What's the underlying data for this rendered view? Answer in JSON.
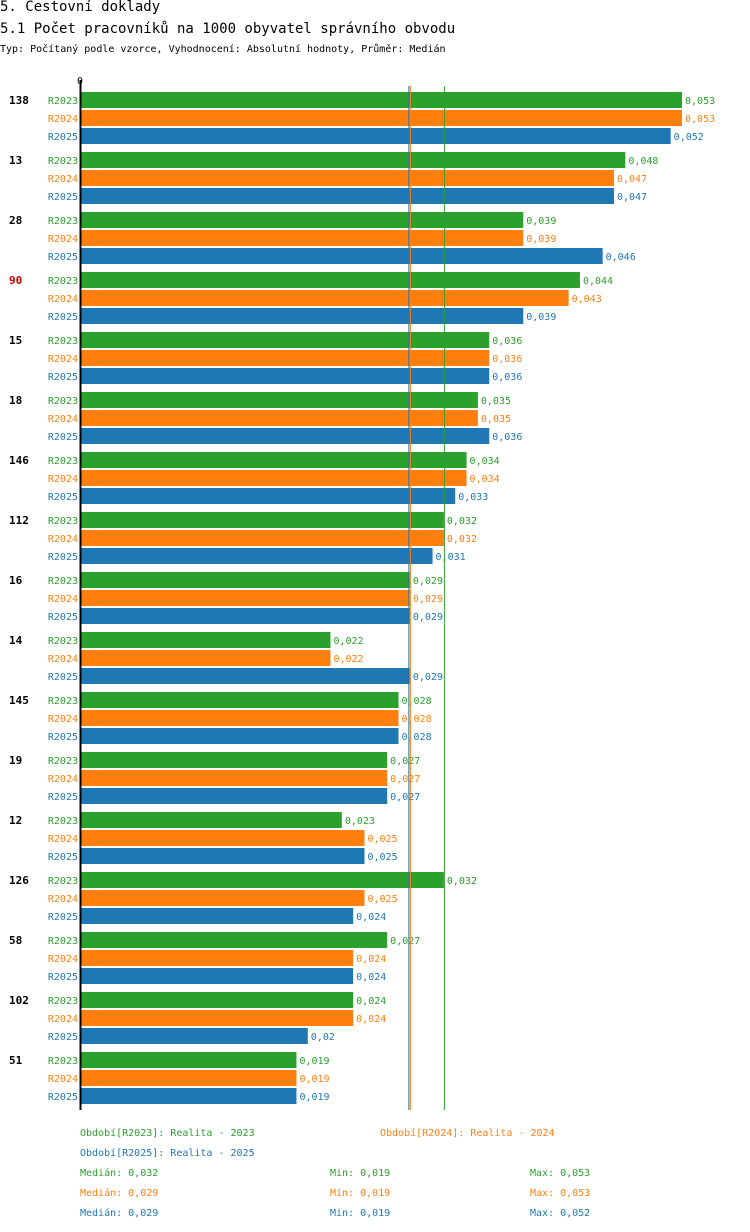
{
  "header": {
    "title": "5. Cestovní doklady",
    "subtitle": "5.1 Počet pracovníků na 1000 obyvatel správního obvodu",
    "description": "Typ: Počítaný podle vzorce, Vyhodnocení: Absolutní hodnoty, Průměr: Medián"
  },
  "colors": {
    "R2023": "#2ca02c",
    "R2024": "#ff7f0e",
    "R2025": "#1f77b4",
    "highlight": "#cc0000"
  },
  "chart_data": {
    "type": "bar",
    "orientation": "horizontal",
    "axis_zero_label": "0",
    "series_names": [
      "R2023",
      "R2024",
      "R2025"
    ],
    "categories": [
      {
        "id": "138",
        "values": [
          "0,053",
          "0,053",
          "0,052"
        ]
      },
      {
        "id": "13",
        "values": [
          "0,048",
          "0,047",
          "0,047"
        ]
      },
      {
        "id": "28",
        "values": [
          "0,039",
          "0,039",
          "0,046"
        ]
      },
      {
        "id": "90",
        "highlight": true,
        "values": [
          "0,044",
          "0,043",
          "0,039"
        ]
      },
      {
        "id": "15",
        "values": [
          "0,036",
          "0,036",
          "0,036"
        ]
      },
      {
        "id": "18",
        "values": [
          "0,035",
          "0,035",
          "0,036"
        ]
      },
      {
        "id": "146",
        "values": [
          "0,034",
          "0,034",
          "0,033"
        ]
      },
      {
        "id": "112",
        "values": [
          "0,032",
          "0,032",
          "0,031"
        ]
      },
      {
        "id": "16",
        "values": [
          "0,029",
          "0,029",
          "0,029"
        ]
      },
      {
        "id": "14",
        "values": [
          "0,022",
          "0,022",
          "0,029"
        ]
      },
      {
        "id": "145",
        "values": [
          "0,028",
          "0,028",
          "0,028"
        ]
      },
      {
        "id": "19",
        "values": [
          "0,027",
          "0,027",
          "0,027"
        ]
      },
      {
        "id": "12",
        "values": [
          "0,023",
          "0,025",
          "0,025"
        ]
      },
      {
        "id": "126",
        "values": [
          "0,032",
          "0,025",
          "0,024"
        ]
      },
      {
        "id": "58",
        "values": [
          "0,027",
          "0,024",
          "0,024"
        ]
      },
      {
        "id": "102",
        "values": [
          "0,024",
          "0,024",
          "0,02"
        ]
      },
      {
        "id": "51",
        "values": [
          "0,019",
          "0,019",
          "0,019"
        ]
      }
    ],
    "medians": {
      "R2023": 0.032,
      "R2024": 0.029,
      "R2025": 0.029
    }
  },
  "legend": {
    "period_2023": "Období[R2023]: Realita - 2023",
    "period_2024": "Období[R2024]: Realita - 2024",
    "period_2025": "Období[R2025]: Realita - 2025"
  },
  "stats": [
    {
      "median": "Medián: 0,032",
      "min": "Min: 0,019",
      "max": "Max: 0,053"
    },
    {
      "median": "Medián: 0,029",
      "min": "Min: 0,019",
      "max": "Max: 0,053"
    },
    {
      "median": "Medián: 0,029",
      "min": "Min: 0,019",
      "max": "Max: 0,052"
    }
  ]
}
